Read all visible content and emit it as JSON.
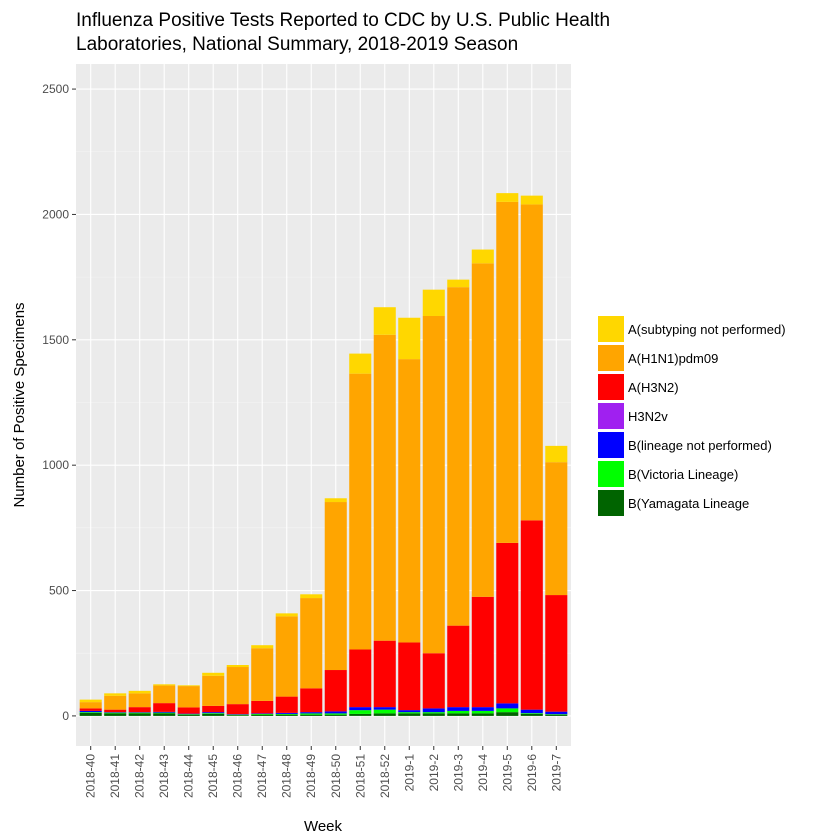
{
  "chart_data": {
    "type": "bar",
    "stacked": true,
    "title": "Influenza Positive Tests Reported to CDC by U.S. Public Health Laboratories, National Summary, 2018-2019 Season",
    "title_lines": [
      "Influenza Positive Tests Reported to CDC by U.S. Public Health",
      "Laboratories, National Summary, 2018-2019 Season"
    ],
    "xlabel": "Week",
    "ylabel": "Number of Positive Specimens",
    "ylim": [
      -120,
      2600
    ],
    "yticks": [
      0,
      500,
      1000,
      1500,
      2000,
      2500
    ],
    "grid": true,
    "legend_position": "right",
    "categories": [
      "2018-40",
      "2018-41",
      "2018-42",
      "2018-43",
      "2018-44",
      "2018-45",
      "2018-46",
      "2018-47",
      "2018-48",
      "2018-49",
      "2018-50",
      "2018-51",
      "2018-52",
      "2019-1",
      "2019-2",
      "2019-3",
      "2019-4",
      "2019-5",
      "2019-6",
      "2019-7"
    ],
    "series": [
      {
        "name": "B(Yamagata Lineage",
        "color": "#006400",
        "values": [
          12,
          10,
          10,
          10,
          5,
          8,
          3,
          5,
          5,
          5,
          5,
          8,
          10,
          10,
          10,
          10,
          10,
          15,
          8,
          5
        ]
      },
      {
        "name": "B(Victoria Lineage)",
        "color": "#00ff00",
        "values": [
          3,
          3,
          3,
          3,
          2,
          3,
          2,
          3,
          3,
          5,
          5,
          15,
          15,
          5,
          5,
          10,
          10,
          15,
          3,
          2
        ]
      },
      {
        "name": "B(lineage not performed)",
        "color": "#0000ff",
        "values": [
          5,
          2,
          2,
          3,
          2,
          4,
          2,
          2,
          4,
          5,
          8,
          12,
          10,
          8,
          15,
          15,
          15,
          20,
          14,
          10
        ]
      },
      {
        "name": "H3N2v",
        "color": "#a020f0",
        "values": [
          0,
          0,
          0,
          0,
          0,
          0,
          0,
          0,
          0,
          0,
          0,
          0,
          0,
          0,
          0,
          0,
          0,
          0,
          0,
          0
        ]
      },
      {
        "name": "A(H3N2)",
        "color": "#ff0000",
        "values": [
          10,
          10,
          20,
          35,
          25,
          25,
          40,
          50,
          65,
          95,
          165,
          230,
          265,
          270,
          220,
          325,
          440,
          640,
          755,
          465
        ]
      },
      {
        "name": "A(H1N1)pdm09",
        "color": "#ffa500",
        "values": [
          25,
          55,
          55,
          70,
          85,
          120,
          148,
          210,
          320,
          360,
          670,
          1100,
          1220,
          1130,
          1345,
          1350,
          1330,
          1360,
          1260,
          530
        ]
      },
      {
        "name": "A(subtyping not performed)",
        "color": "#ffd700",
        "values": [
          10,
          10,
          10,
          5,
          3,
          12,
          8,
          12,
          12,
          15,
          15,
          80,
          110,
          165,
          105,
          30,
          55,
          35,
          35,
          65
        ]
      }
    ]
  }
}
